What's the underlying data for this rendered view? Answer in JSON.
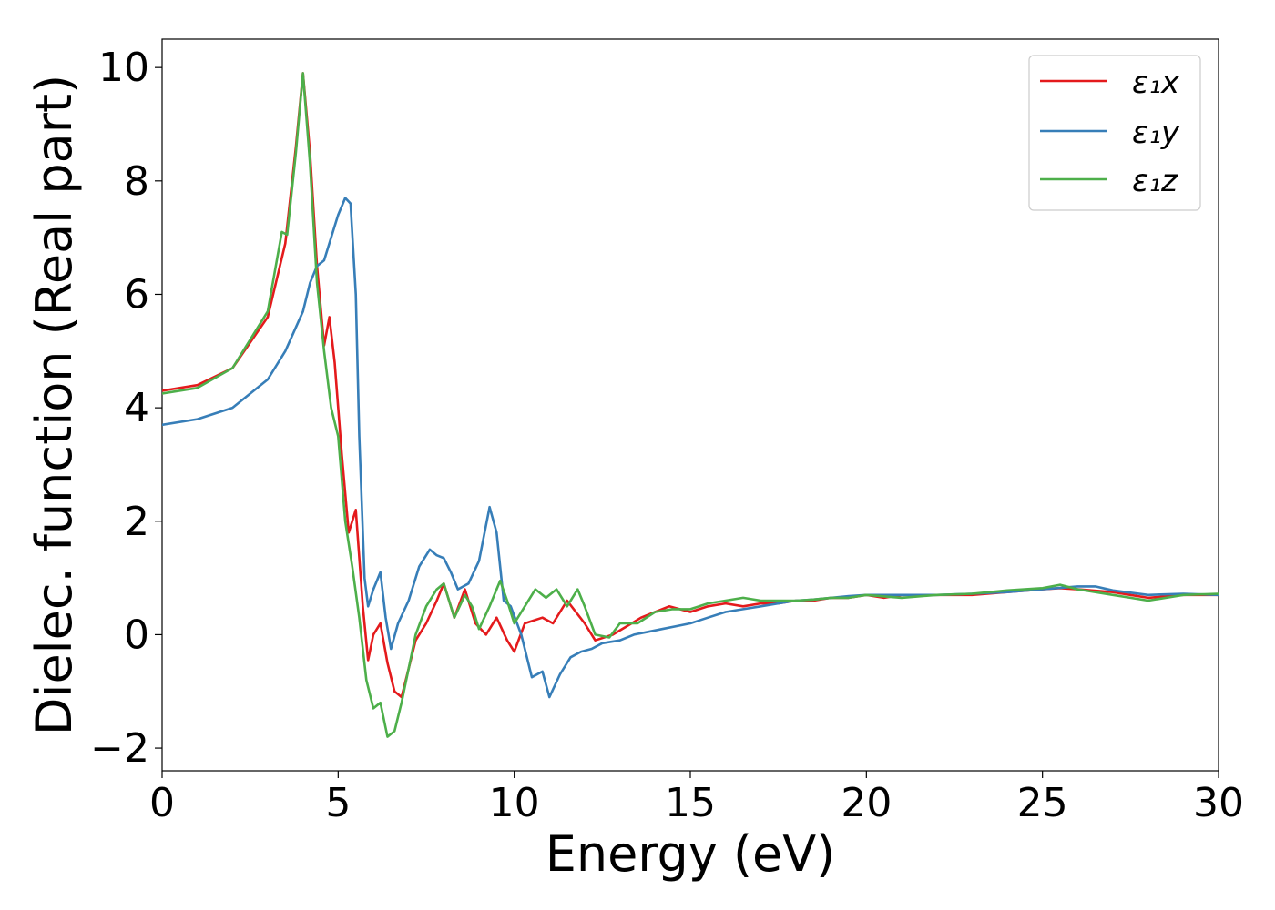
{
  "chart_data": {
    "type": "line",
    "xlabel": "Energy (eV)",
    "ylabel": "Dielec. function (Real part)",
    "xlim": [
      0,
      30
    ],
    "ylim": [
      -2.4,
      10.5
    ],
    "xticks": [
      0,
      5,
      10,
      15,
      20,
      25,
      30
    ],
    "xtick_labels": [
      "0",
      "5",
      "10",
      "15",
      "20",
      "25",
      "30"
    ],
    "yticks": [
      -2,
      0,
      2,
      4,
      6,
      8,
      10
    ],
    "ytick_labels": [
      "−2",
      "0",
      "2",
      "4",
      "6",
      "8",
      "10"
    ],
    "grid": false,
    "legend_position": "top-right",
    "series": [
      {
        "name": "ε₁x",
        "color": "#e41a1c",
        "points": [
          [
            0,
            4.3
          ],
          [
            1,
            4.4
          ],
          [
            2,
            4.7
          ],
          [
            3,
            5.6
          ],
          [
            3.5,
            6.9
          ],
          [
            3.8,
            8.6
          ],
          [
            4.0,
            9.9
          ],
          [
            4.2,
            8.5
          ],
          [
            4.4,
            6.5
          ],
          [
            4.6,
            5.1
          ],
          [
            4.75,
            5.6
          ],
          [
            4.9,
            4.8
          ],
          [
            5.1,
            3.2
          ],
          [
            5.3,
            1.8
          ],
          [
            5.5,
            2.2
          ],
          [
            5.7,
            0.5
          ],
          [
            5.85,
            -0.45
          ],
          [
            6.0,
            0.0
          ],
          [
            6.2,
            0.2
          ],
          [
            6.4,
            -0.5
          ],
          [
            6.6,
            -1.0
          ],
          [
            6.8,
            -1.1
          ],
          [
            7.0,
            -0.6
          ],
          [
            7.2,
            -0.1
          ],
          [
            7.5,
            0.2
          ],
          [
            7.8,
            0.6
          ],
          [
            8.0,
            0.9
          ],
          [
            8.3,
            0.3
          ],
          [
            8.6,
            0.8
          ],
          [
            8.9,
            0.2
          ],
          [
            9.2,
            0.0
          ],
          [
            9.5,
            0.3
          ],
          [
            9.8,
            -0.1
          ],
          [
            10.0,
            -0.3
          ],
          [
            10.3,
            0.2
          ],
          [
            10.8,
            0.3
          ],
          [
            11.1,
            0.2
          ],
          [
            11.5,
            0.6
          ],
          [
            12.0,
            0.2
          ],
          [
            12.3,
            -0.1
          ],
          [
            12.8,
            0.0
          ],
          [
            13.2,
            0.15
          ],
          [
            13.6,
            0.3
          ],
          [
            14.0,
            0.4
          ],
          [
            14.4,
            0.5
          ],
          [
            15.0,
            0.4
          ],
          [
            15.5,
            0.5
          ],
          [
            16.0,
            0.55
          ],
          [
            16.5,
            0.5
          ],
          [
            17,
            0.55
          ],
          [
            17.5,
            0.55
          ],
          [
            18,
            0.6
          ],
          [
            18.5,
            0.6
          ],
          [
            19,
            0.65
          ],
          [
            19.5,
            0.65
          ],
          [
            20,
            0.7
          ],
          [
            20.5,
            0.65
          ],
          [
            21,
            0.7
          ],
          [
            21.5,
            0.7
          ],
          [
            22,
            0.7
          ],
          [
            23,
            0.7
          ],
          [
            24,
            0.75
          ],
          [
            25,
            0.8
          ],
          [
            25.5,
            0.82
          ],
          [
            26,
            0.8
          ],
          [
            27,
            0.75
          ],
          [
            27.5,
            0.7
          ],
          [
            28,
            0.65
          ],
          [
            29,
            0.7
          ],
          [
            30,
            0.7
          ]
        ]
      },
      {
        "name": "ε₁y",
        "color": "#377eb8",
        "points": [
          [
            0,
            3.7
          ],
          [
            1,
            3.8
          ],
          [
            2,
            4.0
          ],
          [
            3,
            4.5
          ],
          [
            3.5,
            5.0
          ],
          [
            4.0,
            5.7
          ],
          [
            4.2,
            6.2
          ],
          [
            4.4,
            6.5
          ],
          [
            4.6,
            6.6
          ],
          [
            4.8,
            7.0
          ],
          [
            5.0,
            7.4
          ],
          [
            5.2,
            7.7
          ],
          [
            5.35,
            7.6
          ],
          [
            5.5,
            6.0
          ],
          [
            5.6,
            3.5
          ],
          [
            5.75,
            1.0
          ],
          [
            5.85,
            0.5
          ],
          [
            6.0,
            0.8
          ],
          [
            6.2,
            1.1
          ],
          [
            6.35,
            0.3
          ],
          [
            6.5,
            -0.25
          ],
          [
            6.7,
            0.2
          ],
          [
            7.0,
            0.6
          ],
          [
            7.3,
            1.2
          ],
          [
            7.6,
            1.5
          ],
          [
            7.8,
            1.4
          ],
          [
            8.0,
            1.35
          ],
          [
            8.2,
            1.1
          ],
          [
            8.4,
            0.8
          ],
          [
            8.7,
            0.9
          ],
          [
            9.0,
            1.3
          ],
          [
            9.3,
            2.25
          ],
          [
            9.5,
            1.8
          ],
          [
            9.7,
            0.6
          ],
          [
            9.9,
            0.5
          ],
          [
            10.2,
            0.0
          ],
          [
            10.5,
            -0.75
          ],
          [
            10.8,
            -0.65
          ],
          [
            11.0,
            -1.1
          ],
          [
            11.3,
            -0.7
          ],
          [
            11.6,
            -0.4
          ],
          [
            11.9,
            -0.3
          ],
          [
            12.2,
            -0.25
          ],
          [
            12.5,
            -0.15
          ],
          [
            13.0,
            -0.1
          ],
          [
            13.4,
            0.0
          ],
          [
            13.8,
            0.05
          ],
          [
            14.2,
            0.1
          ],
          [
            14.6,
            0.15
          ],
          [
            15.0,
            0.2
          ],
          [
            15.5,
            0.3
          ],
          [
            16.0,
            0.4
          ],
          [
            16.5,
            0.45
          ],
          [
            17,
            0.5
          ],
          [
            17.5,
            0.55
          ],
          [
            18,
            0.6
          ],
          [
            18.5,
            0.62
          ],
          [
            19,
            0.65
          ],
          [
            19.5,
            0.68
          ],
          [
            20,
            0.7
          ],
          [
            21,
            0.7
          ],
          [
            22,
            0.7
          ],
          [
            23,
            0.72
          ],
          [
            24,
            0.75
          ],
          [
            25,
            0.8
          ],
          [
            26,
            0.85
          ],
          [
            26.5,
            0.85
          ],
          [
            27,
            0.78
          ],
          [
            28,
            0.7
          ],
          [
            29,
            0.72
          ],
          [
            30,
            0.7
          ]
        ]
      },
      {
        "name": "ε₁z",
        "color": "#4daf4a",
        "points": [
          [
            0,
            4.25
          ],
          [
            1,
            4.35
          ],
          [
            2,
            4.7
          ],
          [
            3,
            5.7
          ],
          [
            3.4,
            7.1
          ],
          [
            3.55,
            7.05
          ],
          [
            3.8,
            8.5
          ],
          [
            4.0,
            9.9
          ],
          [
            4.2,
            8.3
          ],
          [
            4.4,
            6.2
          ],
          [
            4.6,
            5.0
          ],
          [
            4.8,
            4.0
          ],
          [
            5.0,
            3.5
          ],
          [
            5.2,
            2.0
          ],
          [
            5.4,
            1.2
          ],
          [
            5.6,
            0.3
          ],
          [
            5.8,
            -0.8
          ],
          [
            6.0,
            -1.3
          ],
          [
            6.2,
            -1.2
          ],
          [
            6.4,
            -1.8
          ],
          [
            6.6,
            -1.7
          ],
          [
            6.8,
            -1.2
          ],
          [
            7.0,
            -0.6
          ],
          [
            7.2,
            0.0
          ],
          [
            7.5,
            0.5
          ],
          [
            7.8,
            0.8
          ],
          [
            8.0,
            0.9
          ],
          [
            8.3,
            0.3
          ],
          [
            8.6,
            0.7
          ],
          [
            8.8,
            0.5
          ],
          [
            9.0,
            0.1
          ],
          [
            9.3,
            0.5
          ],
          [
            9.6,
            0.95
          ],
          [
            9.8,
            0.6
          ],
          [
            10.0,
            0.2
          ],
          [
            10.3,
            0.5
          ],
          [
            10.6,
            0.8
          ],
          [
            10.9,
            0.65
          ],
          [
            11.2,
            0.8
          ],
          [
            11.5,
            0.5
          ],
          [
            11.8,
            0.8
          ],
          [
            12.0,
            0.5
          ],
          [
            12.3,
            0.0
          ],
          [
            12.7,
            -0.05
          ],
          [
            13.0,
            0.2
          ],
          [
            13.5,
            0.2
          ],
          [
            14.0,
            0.4
          ],
          [
            14.5,
            0.45
          ],
          [
            15.0,
            0.45
          ],
          [
            15.5,
            0.55
          ],
          [
            16.0,
            0.6
          ],
          [
            16.5,
            0.65
          ],
          [
            17,
            0.6
          ],
          [
            17.5,
            0.6
          ],
          [
            18,
            0.6
          ],
          [
            18.5,
            0.62
          ],
          [
            19,
            0.65
          ],
          [
            19.5,
            0.65
          ],
          [
            20,
            0.7
          ],
          [
            21,
            0.65
          ],
          [
            22,
            0.7
          ],
          [
            23,
            0.72
          ],
          [
            24,
            0.78
          ],
          [
            25,
            0.82
          ],
          [
            25.5,
            0.88
          ],
          [
            26,
            0.8
          ],
          [
            27,
            0.7
          ],
          [
            27.5,
            0.65
          ],
          [
            28,
            0.6
          ],
          [
            29,
            0.7
          ],
          [
            30,
            0.72
          ]
        ]
      }
    ]
  }
}
